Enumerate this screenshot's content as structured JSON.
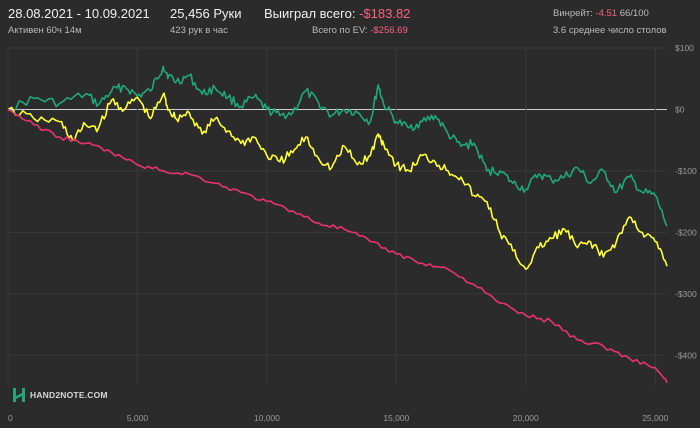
{
  "header": {
    "date_range": "28.08.2021 - 10.09.2021",
    "active_time": "Активен 60ч 14м",
    "hands_count": "25,456 Руки",
    "hands_per_hour": "423 рук в час",
    "won_total_label": "Выиграл всего:",
    "won_total_value": "-$183.82",
    "ev_total_label": "Всего по EV:",
    "ev_total_value": "-$256.69",
    "winrate_label": "Винрейт:",
    "winrate_value": "-4.51",
    "winrate_suffix": "66/100",
    "avg_tables": "3.6 среднее число столов"
  },
  "logo": {
    "text": "HAND2NOTE.COM"
  },
  "colors": {
    "green": "#20a87a",
    "yellow": "#ffff33",
    "pink": "#e8336f",
    "negative_text": "#ff5f7e",
    "background": "#2b2b2b",
    "zero_line": "#cfcfcf",
    "grid": "#3a3a3a"
  },
  "chart_data": {
    "type": "line",
    "xlim": [
      0,
      25456
    ],
    "ylim": [
      -450,
      100
    ],
    "x_ticks": [
      0,
      5000,
      10000,
      15000,
      20000,
      25000
    ],
    "x_tick_labels": [
      "0",
      "5,000",
      "10,000",
      "15,000",
      "20,000",
      "25,000"
    ],
    "y_ticks": [
      100,
      0,
      -100,
      -200,
      -300,
      -400
    ],
    "y_tick_labels": [
      "$100",
      "$0",
      "-$100",
      "-$200",
      "-$300",
      "-$400"
    ],
    "grid": true,
    "series": [
      {
        "color": "green",
        "x": [
          0,
          1000,
          2000,
          3000,
          3500,
          4000,
          4500,
          5000,
          5500,
          6000,
          6200,
          6500,
          7000,
          7500,
          8000,
          8500,
          9000,
          9500,
          10000,
          10500,
          11000,
          11500,
          12000,
          12500,
          13000,
          13500,
          14000,
          14300,
          14500,
          15000,
          15500,
          16000,
          16500,
          17000,
          17500,
          18000,
          18500,
          19000,
          19500,
          20000,
          20500,
          21000,
          21500,
          22000,
          22500,
          23000,
          23500,
          24000,
          24500,
          25000,
          25456
        ],
        "y": [
          0,
          18,
          10,
          25,
          8,
          30,
          38,
          22,
          30,
          70,
          55,
          45,
          55,
          25,
          35,
          20,
          5,
          20,
          0,
          -10,
          -5,
          30,
          10,
          -10,
          0,
          -5,
          -20,
          40,
          10,
          -20,
          -30,
          -20,
          -10,
          -40,
          -60,
          -55,
          -100,
          -100,
          -120,
          -130,
          -105,
          -115,
          -110,
          -95,
          -120,
          -100,
          -135,
          -110,
          -135,
          -140,
          -190
        ]
      },
      {
        "color": "yellow",
        "x": [
          0,
          1000,
          2000,
          2500,
          3000,
          3500,
          4000,
          4500,
          5000,
          5500,
          6000,
          6200,
          6500,
          7000,
          7500,
          8000,
          8500,
          9000,
          9500,
          10000,
          10500,
          11000,
          11500,
          12000,
          12500,
          13000,
          13500,
          14000,
          14300,
          14500,
          15000,
          15500,
          16000,
          16500,
          17000,
          17500,
          18000,
          18500,
          19000,
          19500,
          20000,
          20500,
          21000,
          21500,
          22000,
          22500,
          23000,
          23500,
          24000,
          24500,
          25000,
          25456
        ],
        "y": [
          0,
          -15,
          -20,
          -50,
          -25,
          -30,
          15,
          0,
          20,
          -15,
          25,
          0,
          -15,
          -5,
          -40,
          -15,
          -35,
          -55,
          -45,
          -75,
          -85,
          -70,
          -45,
          -80,
          -95,
          -60,
          -90,
          -75,
          -40,
          -55,
          -90,
          -100,
          -75,
          -85,
          -100,
          -110,
          -140,
          -150,
          -200,
          -230,
          -260,
          -225,
          -210,
          -195,
          -225,
          -215,
          -240,
          -215,
          -175,
          -200,
          -215,
          -255
        ]
      },
      {
        "color": "pink",
        "x": [
          0,
          1000,
          2000,
          3000,
          4000,
          5000,
          6000,
          7000,
          8000,
          9000,
          10000,
          11000,
          12000,
          13000,
          14000,
          15000,
          16000,
          17000,
          18000,
          19000,
          20000,
          21000,
          22000,
          23000,
          24000,
          25000,
          25456
        ],
        "y": [
          0,
          -25,
          -45,
          -55,
          -70,
          -90,
          -100,
          -105,
          -120,
          -135,
          -150,
          -165,
          -185,
          -195,
          -215,
          -235,
          -250,
          -260,
          -285,
          -315,
          -335,
          -345,
          -375,
          -385,
          -405,
          -420,
          -445
        ]
      }
    ]
  }
}
